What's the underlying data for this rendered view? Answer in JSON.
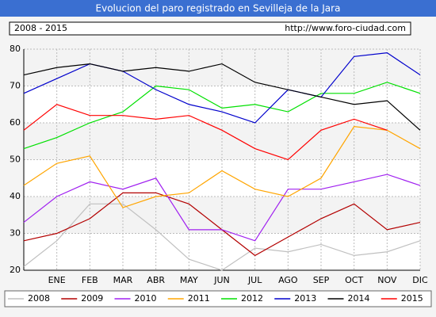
{
  "chart_data": {
    "type": "line",
    "title": "Evolucion del paro registrado en Sevilleja de la Jara",
    "subtitle": "2008 - 2015",
    "source": "http://www.foro-ciudad.com",
    "categories": [
      null,
      "ENE",
      "FEB",
      "MAR",
      "ABR",
      "MAY",
      "JUN",
      "JUL",
      "AGO",
      "SEP",
      "OCT",
      "NOV",
      "DIC"
    ],
    "ylim": [
      20,
      80
    ],
    "yticks": [
      20,
      30,
      40,
      50,
      60,
      70,
      80
    ],
    "grid": true,
    "series": [
      {
        "name": "2008",
        "color": "#c0c0c0",
        "values": [
          21,
          28,
          38,
          38,
          31,
          23,
          20,
          26,
          25,
          27,
          24,
          25,
          28
        ]
      },
      {
        "name": "2009",
        "color": "#b30000",
        "values": [
          28,
          30,
          34,
          41,
          41,
          38,
          31,
          24,
          29,
          34,
          38,
          31,
          33
        ]
      },
      {
        "name": "2010",
        "color": "#a020f0",
        "values": [
          33,
          40,
          44,
          42,
          45,
          31,
          31,
          28,
          42,
          42,
          44,
          46,
          43
        ]
      },
      {
        "name": "2011",
        "color": "#ffa500",
        "values": [
          43,
          49,
          51,
          37,
          40,
          41,
          47,
          42,
          40,
          45,
          59,
          58,
          53
        ]
      },
      {
        "name": "2012",
        "color": "#00e000",
        "values": [
          53,
          56,
          60,
          63,
          70,
          69,
          64,
          65,
          63,
          68,
          68,
          71,
          68
        ]
      },
      {
        "name": "2013",
        "color": "#0000cc",
        "values": [
          68,
          72,
          76,
          74,
          69,
          65,
          63,
          60,
          69,
          67,
          78,
          79,
          73
        ]
      },
      {
        "name": "2014",
        "color": "#000000",
        "values": [
          73,
          75,
          76,
          74,
          75,
          74,
          76,
          71,
          69,
          67,
          65,
          66,
          58
        ]
      },
      {
        "name": "2015",
        "color": "#ff0000",
        "values": [
          58,
          65,
          62,
          62,
          61,
          62,
          58,
          53,
          50,
          58,
          61,
          58,
          null
        ]
      }
    ]
  }
}
